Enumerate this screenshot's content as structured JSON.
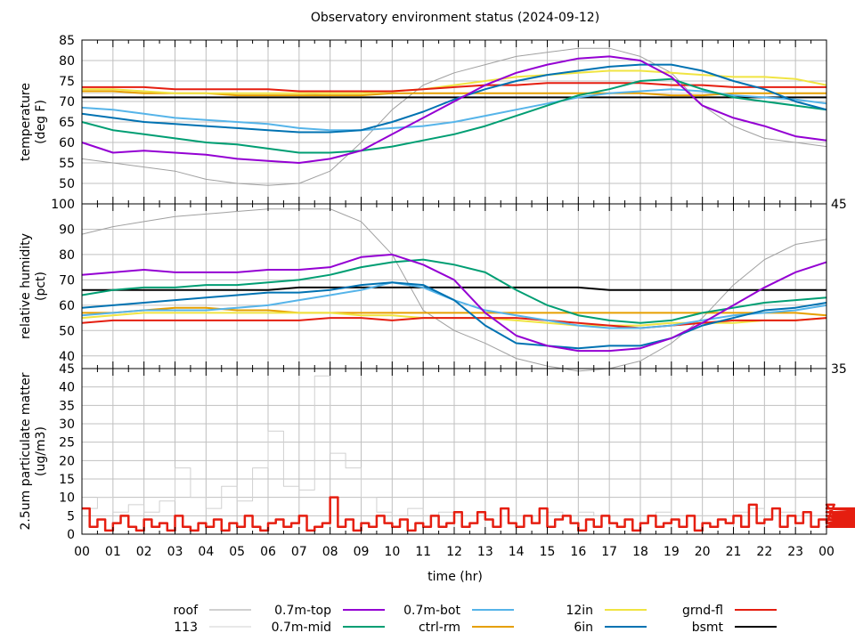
{
  "chart_data": [
    {
      "type": "line",
      "title": "Observatory environment status (2024-09-12)",
      "ylabel": [
        "temperature",
        "(deg F)"
      ],
      "ylim": [
        45,
        85
      ],
      "yticks": [
        45,
        50,
        55,
        60,
        65,
        70,
        75,
        80,
        85
      ],
      "x": [
        0,
        1,
        2,
        3,
        4,
        5,
        6,
        7,
        8,
        9,
        10,
        11,
        12,
        13,
        14,
        15,
        16,
        17,
        18,
        19,
        20,
        21,
        22,
        23,
        24
      ],
      "series": [
        {
          "name": "113",
          "values": [
            72,
            72,
            72,
            72,
            72,
            72,
            72,
            72,
            71.5,
            71.5,
            72,
            72,
            72,
            72,
            72,
            72,
            72,
            72,
            72,
            72,
            72,
            72,
            72,
            72,
            72
          ]
        },
        {
          "name": "roof",
          "values": [
            56,
            55,
            54,
            53,
            51,
            50,
            49.5,
            50,
            53,
            60,
            68,
            74,
            77,
            79,
            81,
            82,
            83,
            83,
            81,
            77,
            69,
            64,
            61,
            60,
            59
          ]
        },
        {
          "name": "bsmt",
          "values": [
            71,
            71,
            71,
            71,
            71,
            71,
            71,
            71,
            71,
            71,
            71,
            71,
            71,
            71,
            71,
            71,
            71,
            71,
            71,
            71,
            71,
            71,
            71,
            71,
            71
          ]
        },
        {
          "name": "ctrl-rm",
          "values": [
            72.5,
            72.5,
            72,
            72,
            72,
            71.5,
            71.5,
            71.5,
            71.5,
            71.5,
            72,
            72,
            72,
            72,
            72,
            72,
            72,
            72,
            72,
            71.5,
            71.5,
            72,
            72,
            72,
            72
          ]
        },
        {
          "name": "12in",
          "values": [
            73,
            73,
            72.5,
            72,
            72,
            72,
            72,
            72,
            72,
            72,
            72.5,
            73,
            74,
            75,
            76,
            76.5,
            77,
            77.5,
            77.5,
            77,
            76.5,
            76,
            76,
            75.5,
            74
          ]
        },
        {
          "name": "grnd-fl",
          "values": [
            73.5,
            73.5,
            73.5,
            73,
            73,
            73,
            73,
            72.5,
            72.5,
            72.5,
            72.5,
            73,
            73.5,
            74,
            74,
            74.5,
            74.5,
            74.5,
            74.5,
            74,
            74,
            73.5,
            73.5,
            73.5,
            73.5
          ]
        },
        {
          "name": "0.7m-bot",
          "values": [
            68.5,
            68,
            67,
            66,
            65.5,
            65,
            64.5,
            63.5,
            63,
            63,
            63.5,
            64,
            65,
            66.5,
            68,
            69.5,
            71,
            72,
            72.5,
            73,
            72.5,
            71.5,
            71,
            70.5,
            69.5
          ]
        },
        {
          "name": "0.7m-mid",
          "values": [
            65,
            63,
            62,
            61,
            60,
            59.5,
            58.5,
            57.5,
            57.5,
            58,
            59,
            60.5,
            62,
            64,
            66.5,
            69,
            71.5,
            73,
            75,
            75.5,
            73,
            71,
            70,
            69,
            68
          ]
        },
        {
          "name": "6in",
          "values": [
            67,
            66,
            65,
            64.5,
            64,
            63.5,
            63,
            62.5,
            62.5,
            63,
            65,
            67.5,
            70.5,
            73,
            75,
            76.5,
            77.5,
            78.5,
            79,
            79,
            77.5,
            75,
            73,
            70,
            68
          ]
        },
        {
          "name": "0.7m-top",
          "values": [
            60,
            57.5,
            58,
            57.5,
            57,
            56,
            55.5,
            55,
            56,
            58,
            62,
            66,
            70,
            74,
            77,
            79,
            80.5,
            81,
            80,
            76,
            69,
            66,
            64,
            61.5,
            60.5
          ]
        }
      ]
    },
    {
      "type": "line",
      "ylabel": [
        "relative humidity",
        "(pct)"
      ],
      "ylim": [
        35,
        100
      ],
      "yticks": [
        35,
        40,
        50,
        60,
        70,
        80,
        90,
        100
      ],
      "x": [
        0,
        1,
        2,
        3,
        4,
        5,
        6,
        7,
        8,
        9,
        10,
        11,
        12,
        13,
        14,
        15,
        16,
        17,
        18,
        19,
        20,
        21,
        22,
        23,
        24
      ],
      "series": [
        {
          "name": "roof",
          "values": [
            88,
            91,
            93,
            95,
            96,
            97,
            98,
            98,
            98,
            93,
            80,
            58,
            50,
            45,
            39,
            36,
            34,
            35,
            38,
            45,
            55,
            68,
            78,
            84,
            86
          ]
        },
        {
          "name": "ctrl-rm",
          "values": [
            57,
            57,
            58,
            59,
            59,
            58,
            58,
            57,
            57,
            57,
            57,
            57,
            57,
            57,
            57,
            57,
            57,
            57,
            57,
            57,
            57,
            57,
            57,
            57,
            56
          ]
        },
        {
          "name": "12in",
          "values": [
            55,
            56,
            57,
            57,
            57,
            57,
            57,
            57,
            57,
            56,
            56,
            55,
            55,
            55,
            54,
            53,
            52,
            52,
            52,
            53,
            53,
            53,
            54,
            54,
            55
          ]
        },
        {
          "name": "grnd-fl",
          "values": [
            53,
            54,
            54,
            54,
            54,
            54,
            54,
            54,
            55,
            55,
            54,
            55,
            55,
            55,
            55,
            54,
            53,
            52,
            51,
            52,
            53,
            54,
            54,
            54,
            55
          ]
        },
        {
          "name": "bsmt",
          "values": [
            66,
            66,
            66,
            66,
            66,
            66,
            66,
            67,
            67,
            67,
            67,
            67,
            67,
            67,
            67,
            67,
            67,
            66,
            66,
            66,
            66,
            66,
            66,
            66,
            66
          ]
        },
        {
          "name": "0.7m-bot",
          "values": [
            56,
            57,
            58,
            58,
            58,
            59,
            60,
            62,
            64,
            66,
            69,
            67,
            62,
            58,
            56,
            54,
            52,
            51,
            51,
            52,
            54,
            56,
            57,
            58,
            60
          ]
        },
        {
          "name": "0.7m-mid",
          "values": [
            64,
            66,
            67,
            67,
            68,
            68,
            69,
            70,
            72,
            75,
            77,
            78,
            76,
            73,
            66,
            60,
            56,
            54,
            53,
            54,
            57,
            59,
            61,
            62,
            63
          ]
        },
        {
          "name": "6in",
          "values": [
            59,
            60,
            61,
            62,
            63,
            64,
            65,
            65,
            66,
            68,
            69,
            68,
            62,
            52,
            45,
            44,
            43,
            44,
            44,
            47,
            52,
            55,
            58,
            59,
            61
          ]
        },
        {
          "name": "0.7m-top",
          "values": [
            72,
            73,
            74,
            73,
            73,
            73,
            74,
            74,
            75,
            79,
            80,
            76,
            70,
            57,
            48,
            44,
            42,
            42,
            43,
            47,
            53,
            60,
            67,
            73,
            77
          ]
        }
      ]
    },
    {
      "type": "line",
      "ylabel": [
        "2.5um particulate matter",
        "(ug/m3)"
      ],
      "ylim": [
        0,
        45
      ],
      "yticks": [
        0,
        5,
        10,
        15,
        20,
        25,
        30,
        35,
        40,
        45
      ],
      "xlabel": "time (hr)",
      "xlim": [
        0,
        24
      ],
      "xticklabels": [
        "00",
        "01",
        "02",
        "03",
        "04",
        "05",
        "06",
        "07",
        "08",
        "09",
        "10",
        "11",
        "12",
        "13",
        "14",
        "15",
        "16",
        "17",
        "18",
        "19",
        "20",
        "21",
        "22",
        "23",
        "00"
      ],
      "series": [
        {
          "name": "113",
          "step": 0.5,
          "values": [
            7,
            10,
            6,
            8,
            6,
            9,
            18,
            10,
            7,
            13,
            9,
            18,
            28,
            13,
            12,
            43,
            22,
            18,
            10,
            6,
            5,
            7,
            5,
            6,
            5,
            5,
            5,
            5,
            5,
            5,
            6,
            5,
            6,
            5,
            5,
            5,
            5,
            6,
            5,
            5,
            5,
            5,
            6,
            7,
            5,
            6,
            5,
            5,
            5
          ]
        },
        {
          "name": "grnd-fl",
          "step": 0.25,
          "values": [
            7,
            2,
            4,
            1,
            3,
            5,
            2,
            1,
            4,
            2,
            3,
            1,
            5,
            2,
            1,
            3,
            2,
            4,
            1,
            3,
            2,
            5,
            2,
            1,
            3,
            4,
            2,
            3,
            5,
            1,
            2,
            3,
            10,
            2,
            4,
            1,
            3,
            2,
            5,
            3,
            2,
            4,
            1,
            3,
            2,
            5,
            2,
            3,
            6,
            2,
            3,
            6,
            4,
            2,
            7,
            3,
            2,
            5,
            3,
            7,
            2,
            4,
            5,
            3,
            1,
            4,
            2,
            5,
            3,
            2,
            4,
            1,
            3,
            5,
            2,
            3,
            4,
            2,
            5,
            1,
            3,
            2,
            4,
            3,
            5,
            2,
            8,
            3,
            4,
            7,
            2,
            5,
            3,
            6,
            2,
            4,
            3,
            8,
            2,
            5,
            3,
            4,
            2,
            6,
            3,
            2,
            5,
            4,
            2,
            6,
            3,
            5,
            2,
            4,
            3,
            6,
            2,
            7,
            4,
            3,
            2,
            5,
            3,
            6,
            4,
            2,
            5,
            3,
            7,
            2,
            4,
            3,
            5,
            2,
            6,
            3,
            4,
            2,
            5,
            3,
            7,
            2,
            4,
            3,
            6,
            2,
            5,
            3,
            4,
            2,
            6,
            3,
            4,
            7,
            2,
            5,
            3,
            4,
            2,
            6,
            3,
            5,
            2,
            4,
            6,
            3,
            2,
            5,
            3,
            4,
            2,
            6,
            3,
            5,
            2,
            4,
            3,
            5,
            2,
            6,
            3,
            4,
            2,
            5,
            3,
            7,
            2,
            4,
            3,
            5,
            2,
            6,
            3,
            4
          ]
        }
      ]
    }
  ],
  "legend": {
    "placement": "bottom",
    "entries": [
      {
        "name": "roof",
        "color": "#a0a0a0"
      },
      {
        "name": "113",
        "color": "#d0d0d0"
      },
      {
        "name": "0.7m-top",
        "color": "#9400d3"
      },
      {
        "name": "0.7m-mid",
        "color": "#009e73"
      },
      {
        "name": "0.7m-bot",
        "color": "#56b4e9"
      },
      {
        "name": "ctrl-rm",
        "color": "#e69f00"
      },
      {
        "name": "12in",
        "color": "#f0e442"
      },
      {
        "name": "6in",
        "color": "#0072b2"
      },
      {
        "name": "grnd-fl",
        "color": "#e51e10"
      },
      {
        "name": "bsmt",
        "color": "#000000"
      }
    ]
  }
}
